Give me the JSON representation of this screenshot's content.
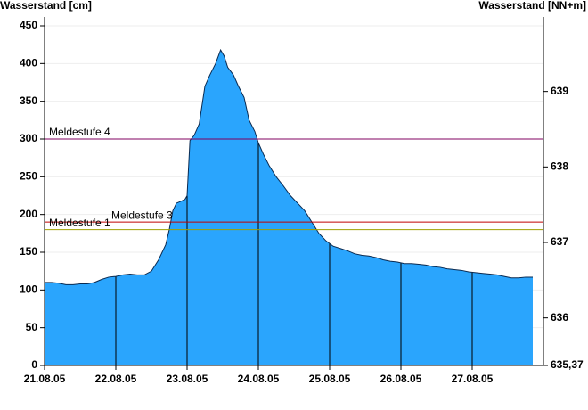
{
  "chart_data": {
    "type": "area",
    "title_left": "Wasserstand [cm]",
    "title_right": "Wasserstand [NN+m]",
    "x": [
      0,
      0.1,
      0.2,
      0.3,
      0.4,
      0.5,
      0.6,
      0.7,
      0.8,
      0.9,
      1.0,
      1.1,
      1.2,
      1.3,
      1.4,
      1.5,
      1.6,
      1.7,
      1.75,
      1.8,
      1.85,
      1.9,
      1.97,
      2.0,
      2.04,
      2.1,
      2.17,
      2.25,
      2.32,
      2.4,
      2.47,
      2.52,
      2.57,
      2.65,
      2.72,
      2.8,
      2.87,
      2.95,
      3.0,
      3.07,
      3.15,
      3.25,
      3.35,
      3.45,
      3.55,
      3.65,
      3.75,
      3.85,
      3.95,
      4.05,
      4.15,
      4.25,
      4.35,
      4.45,
      4.55,
      4.65,
      4.75,
      4.85,
      4.95,
      5.05,
      5.15,
      5.25,
      5.35,
      5.45,
      5.55,
      5.65,
      5.75,
      5.85,
      5.95,
      6.05,
      6.15,
      6.25,
      6.35,
      6.45,
      6.55,
      6.65,
      6.75,
      6.85
    ],
    "values": [
      110,
      110,
      109,
      107,
      107,
      108,
      108,
      110,
      114,
      117,
      118,
      120,
      121,
      120,
      120,
      125,
      140,
      160,
      180,
      205,
      215,
      217,
      220,
      225,
      298,
      305,
      320,
      370,
      385,
      400,
      418,
      410,
      395,
      385,
      370,
      355,
      325,
      310,
      295,
      280,
      265,
      250,
      238,
      225,
      215,
      205,
      190,
      175,
      165,
      158,
      155,
      152,
      148,
      146,
      145,
      143,
      140,
      138,
      137,
      135,
      135,
      134,
      133,
      131,
      130,
      128,
      127,
      126,
      124,
      123,
      122,
      121,
      120,
      118,
      116,
      116,
      117,
      117
    ],
    "color": "#2aa5fd",
    "xlim": [
      0,
      7
    ],
    "xticks": [
      {
        "value": 0,
        "label": "21.08.05"
      },
      {
        "value": 1,
        "label": "22.08.05"
      },
      {
        "value": 2,
        "label": "23.08.05"
      },
      {
        "value": 3,
        "label": "24.08.05"
      },
      {
        "value": 4,
        "label": "25.08.05"
      },
      {
        "value": 5,
        "label": "26.08.05"
      },
      {
        "value": 6,
        "label": "27.08.05"
      }
    ],
    "ylim": [
      0,
      450
    ],
    "yticks": [
      0,
      50,
      100,
      150,
      200,
      250,
      300,
      350,
      400,
      450
    ],
    "y2lim": [
      635.37,
      639.87
    ],
    "y2ticks": [
      {
        "value": 635.37,
        "label": "635,37"
      },
      636,
      637,
      638,
      639
    ],
    "thresholds": [
      {
        "name": "Meldestufe 4",
        "value": 300,
        "color": "#800060"
      },
      {
        "name": "Meldestufe 3",
        "value": 190,
        "color": "#c00000"
      },
      {
        "name": "Meldestufe 1",
        "value": 180,
        "color": "#a0a000"
      }
    ]
  }
}
